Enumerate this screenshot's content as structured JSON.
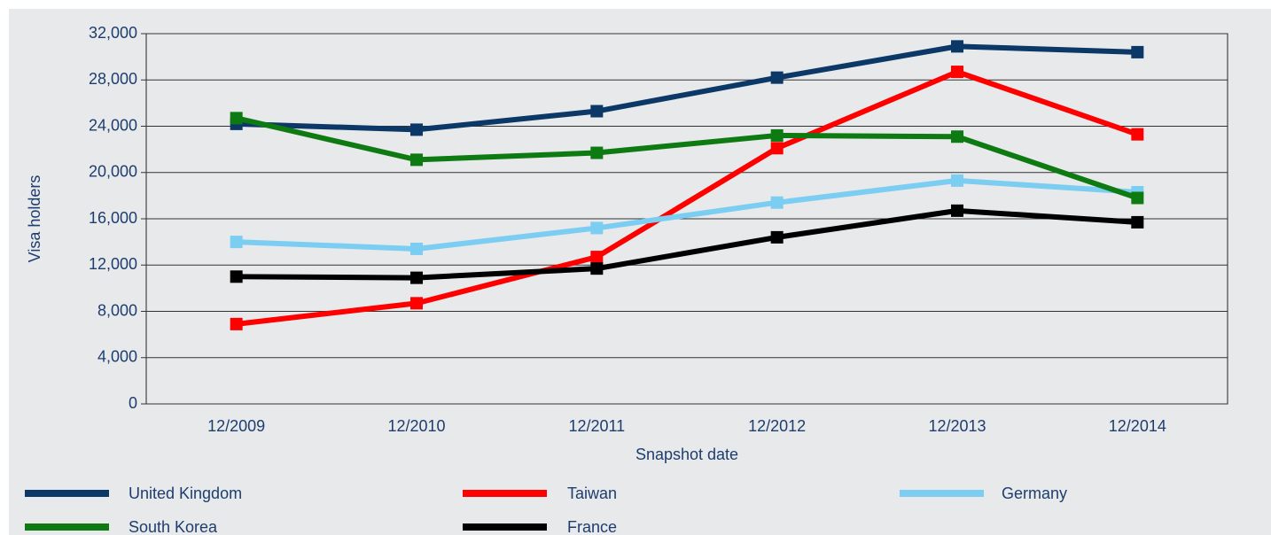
{
  "chart_data": {
    "type": "line",
    "x_label": "Snapshot date",
    "y_label": "Visa holders",
    "categories": [
      "12/2009",
      "12/2010",
      "12/2011",
      "12/2012",
      "12/2013",
      "12/2014"
    ],
    "series": [
      {
        "name": "United Kingdom",
        "color": "#0b3866",
        "values": [
          24200,
          23700,
          25300,
          28200,
          30900,
          30400
        ]
      },
      {
        "name": "Taiwan",
        "color": "#ff0000",
        "values": [
          6900,
          8700,
          12700,
          22100,
          28700,
          23300
        ]
      },
      {
        "name": "Germany",
        "color": "#7ccdf2",
        "values": [
          14000,
          13400,
          15200,
          17400,
          19300,
          18300
        ]
      },
      {
        "name": "South Korea",
        "color": "#0e7a12",
        "values": [
          24700,
          21100,
          21700,
          23200,
          23100,
          17800
        ]
      },
      {
        "name": "France",
        "color": "#000000",
        "values": [
          11000,
          10900,
          11700,
          14400,
          16700,
          15700
        ]
      }
    ],
    "ylim": [
      0,
      32000
    ],
    "yticks": [
      0,
      {
        "value": 4000,
        "label": "4,000"
      },
      {
        "value": 8000,
        "label": "8,000"
      },
      {
        "value": 12000,
        "label": "12,000"
      },
      {
        "value": 16000,
        "label": "16,000"
      },
      {
        "value": 20000,
        "label": "20,000"
      },
      {
        "value": 24000,
        "label": "24,000"
      },
      {
        "value": 28000,
        "label": "28,000"
      },
      {
        "value": 32000,
        "label": "32,000"
      }
    ],
    "grid": true,
    "legend": "bottom"
  }
}
